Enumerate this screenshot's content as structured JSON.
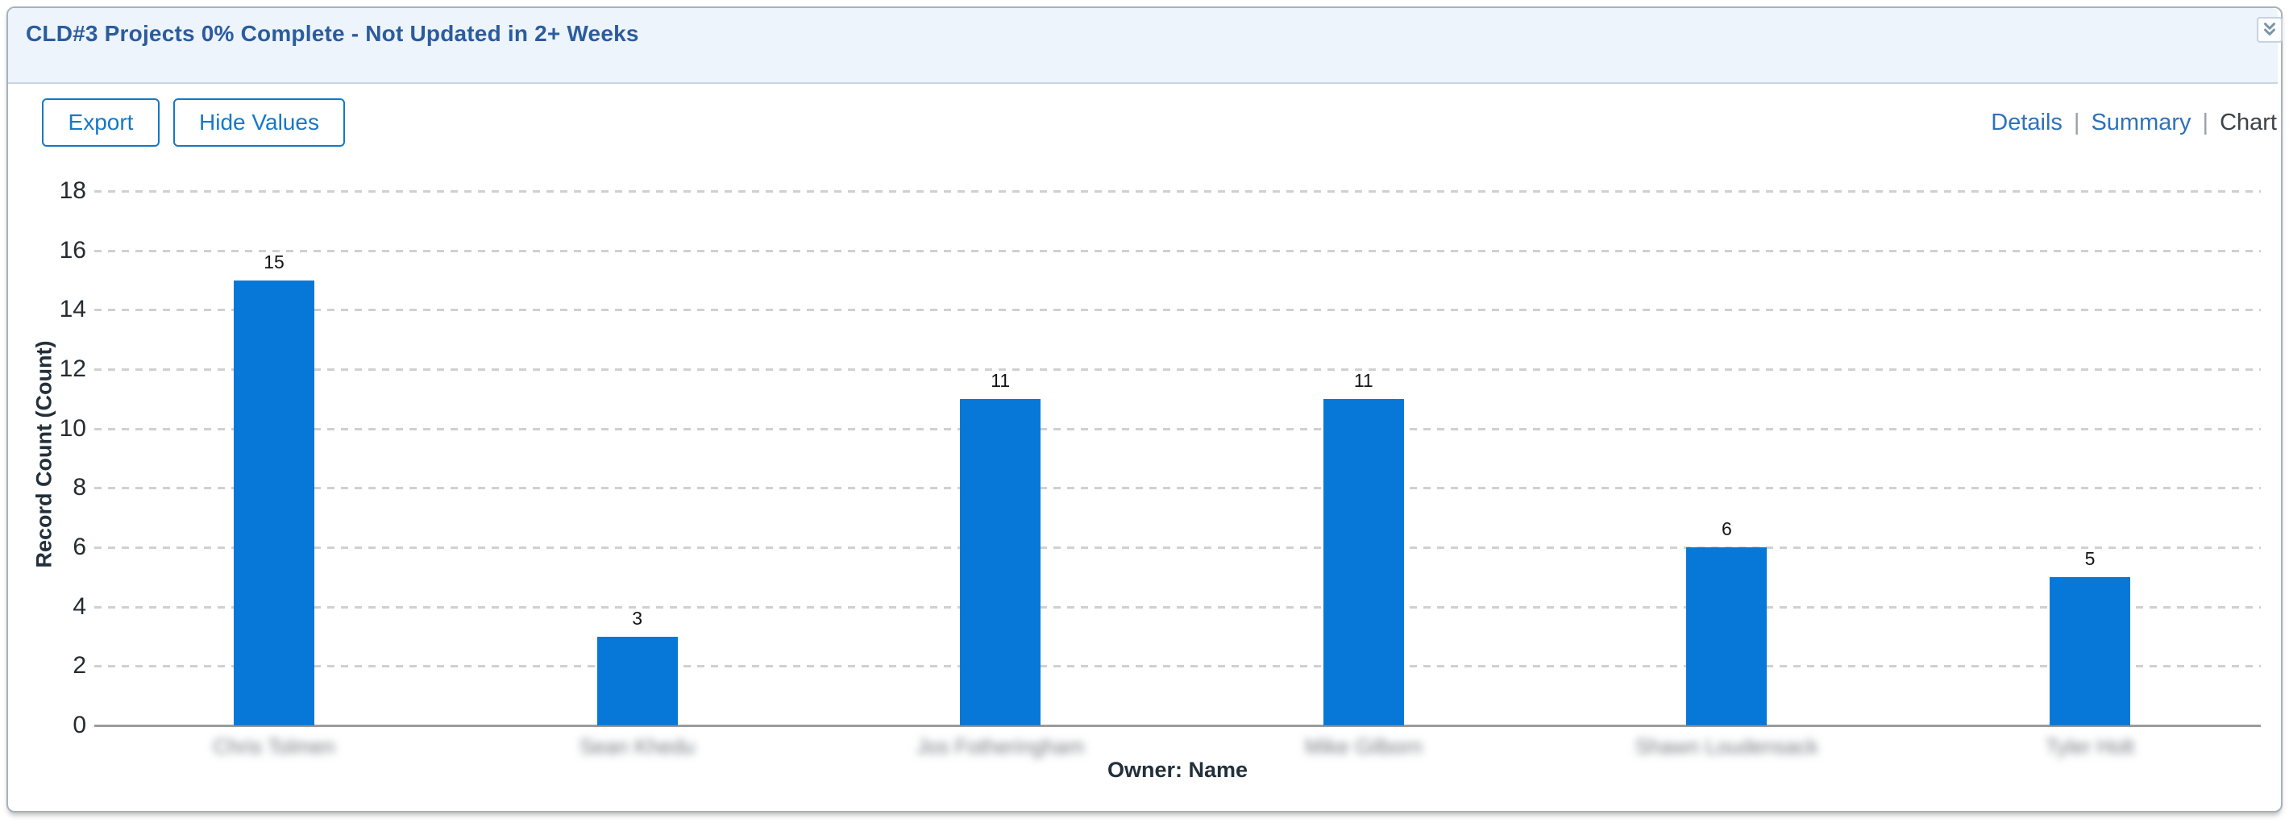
{
  "header": {
    "title": "CLD#3 Projects 0% Complete - Not Updated in 2+ Weeks",
    "collapse_icon": "double-chevron-down"
  },
  "toolbar": {
    "export_label": "Export",
    "hide_values_label": "Hide Values"
  },
  "view_switcher": {
    "separator": "|",
    "items": [
      {
        "label": "Details",
        "active": false
      },
      {
        "label": "Summary",
        "active": false
      },
      {
        "label": "Chart",
        "active": true
      }
    ]
  },
  "chart_data": {
    "type": "bar",
    "title": "",
    "categories": [
      "Chris Tolmen",
      "Sean Khedu",
      "Jos Fotheringham",
      "Mike Gilborn",
      "Shawn Loudensack",
      "Tyler Holt"
    ],
    "categories_blurred": true,
    "values": [
      15,
      3,
      11,
      11,
      6,
      5
    ],
    "value_labels_shown": true,
    "xlabel": "Owner: Name",
    "ylabel": "Record Count (Count)",
    "ylim": [
      0,
      18
    ],
    "yticks": [
      0,
      2,
      4,
      6,
      8,
      10,
      12,
      14,
      16,
      18
    ],
    "grid": "horizontal-dashed",
    "legend": "none",
    "bar_color": "#0878d8"
  },
  "colors": {
    "panel_header_bg": "#edf4fb",
    "panel_border": "#a9b1b8",
    "title_text": "#2b5c9e",
    "button_accent": "#1478c8",
    "link_blue": "#2e72b9",
    "active_view_text": "#3c4349",
    "bar_blue": "#0878d8",
    "gridline": "#d0d0d0",
    "axis_line": "#9b9b9b",
    "chart_text": "#252b31"
  }
}
